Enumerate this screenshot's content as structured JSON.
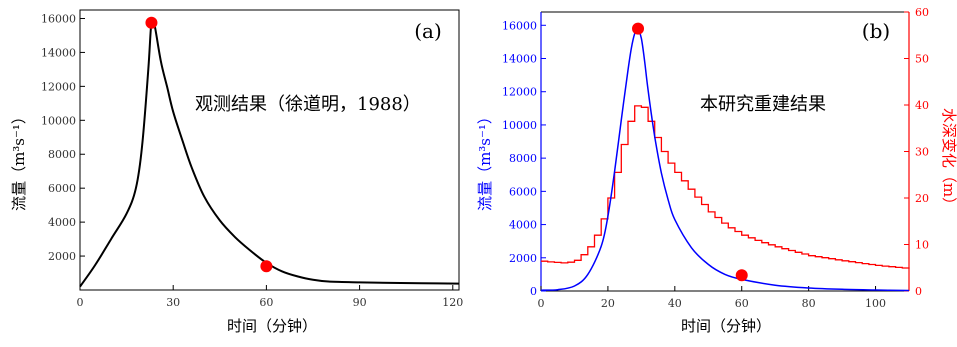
{
  "chart_data": [
    {
      "type": "line",
      "panel_label": "(a)",
      "annotation": "观测结果（徐道明，1988）",
      "xlabel": "时间（分钟）",
      "ylabel": "流量（m³s⁻¹）",
      "xlim": [
        0,
        122
      ],
      "ylim": [
        0,
        16500
      ],
      "xticks": [
        0,
        30,
        60,
        90,
        120
      ],
      "yticks": [
        2000,
        4000,
        6000,
        8000,
        10000,
        12000,
        14000,
        16000
      ],
      "series": [
        {
          "name": "",
          "color": "#000000",
          "x": [
            0,
            5,
            10,
            15,
            18,
            20,
            22,
            23,
            24,
            26,
            28,
            30,
            33,
            36,
            40,
            45,
            50,
            55,
            60,
            65,
            70,
            75,
            80,
            90,
            100,
            110,
            122
          ],
          "y": [
            200,
            1500,
            3000,
            4500,
            6000,
            8500,
            13000,
            15800,
            15600,
            13500,
            12000,
            10500,
            8800,
            7200,
            5500,
            4100,
            3100,
            2300,
            1600,
            1100,
            800,
            600,
            500,
            450,
            420,
            400,
            380
          ]
        }
      ],
      "markers": [
        {
          "x": 23,
          "y": 15750,
          "color": "#ff0000"
        },
        {
          "x": 60,
          "y": 1400,
          "color": "#ff0000"
        }
      ]
    },
    {
      "type": "line",
      "panel_label": "(b)",
      "annotation": "本研究重建结果",
      "xlabel": "时间（分钟）",
      "ylabel": "流量（m³s⁻¹）",
      "ylabel_right": "水深变化（m）",
      "xlim": [
        0,
        110
      ],
      "ylim": [
        0,
        16800
      ],
      "ylim_right": [
        0,
        60
      ],
      "xticks": [
        0,
        20,
        40,
        60,
        80,
        100
      ],
      "yticks": [
        0,
        2000,
        4000,
        6000,
        8000,
        10000,
        12000,
        14000,
        16000
      ],
      "yticks_right": [
        0,
        10,
        20,
        30,
        40,
        50,
        60
      ],
      "left_axis_color": "#0000ff",
      "right_axis_color": "#ff0000",
      "series": [
        {
          "name": "",
          "color": "#0000ff",
          "axis": "left",
          "x": [
            0,
            5,
            10,
            14,
            18,
            20,
            22,
            24,
            26,
            27,
            28,
            29,
            30,
            31,
            32,
            34,
            36,
            38,
            40,
            45,
            50,
            55,
            60,
            70,
            80,
            90,
            100,
            110
          ],
          "y": [
            50,
            80,
            300,
            1000,
            2700,
            4500,
            7200,
            10300,
            13300,
            14600,
            15500,
            15750,
            15200,
            13800,
            12100,
            9300,
            7100,
            5500,
            4300,
            2600,
            1600,
            1000,
            700,
            350,
            180,
            100,
            60,
            30
          ]
        },
        {
          "name": "",
          "color": "#ff0000",
          "axis": "right",
          "x": [
            0,
            3,
            7,
            10,
            12,
            14,
            16,
            18,
            20,
            22,
            24,
            26,
            28,
            29,
            30,
            32,
            34,
            36,
            38,
            40,
            45,
            50,
            55,
            60,
            65,
            70,
            75,
            80,
            90,
            100,
            110
          ],
          "y": [
            6.4,
            6.2,
            6.0,
            6.6,
            7.8,
            9.5,
            12.0,
            15.5,
            20.0,
            25.5,
            31.5,
            36.5,
            39.8,
            40.2,
            39.5,
            36.5,
            33.0,
            30.0,
            27.5,
            25.5,
            21.0,
            17.0,
            14.0,
            12.0,
            10.6,
            9.5,
            8.5,
            7.6,
            6.5,
            5.5,
            4.8
          ]
        }
      ],
      "markers": [
        {
          "x": 29,
          "y": 15800,
          "axis": "left",
          "color": "#ff0000"
        },
        {
          "x": 60,
          "y": 950,
          "axis": "left",
          "color": "#ff0000"
        }
      ]
    }
  ]
}
